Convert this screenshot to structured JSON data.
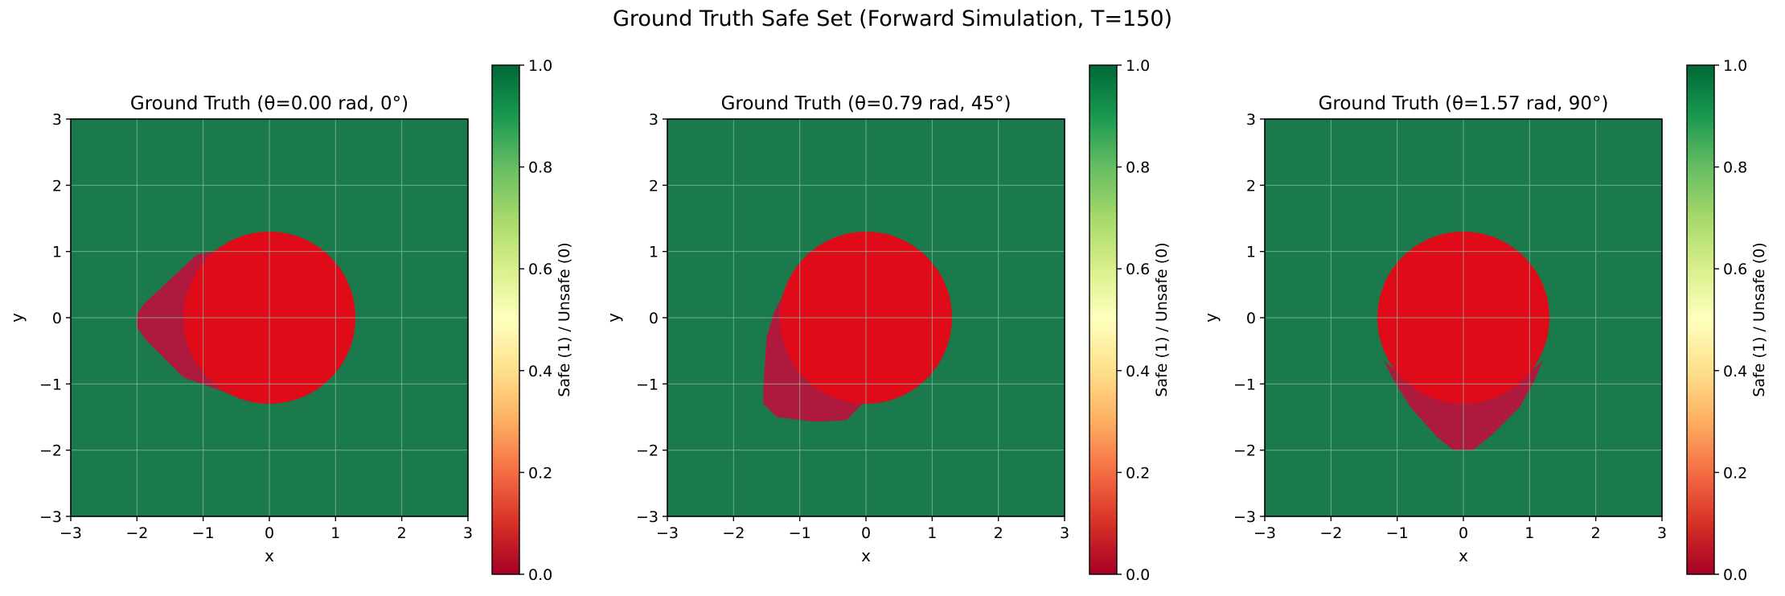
{
  "figure": {
    "suptitle": "Ground Truth Safe Set (Forward Simulation, T=150)"
  },
  "colors": {
    "safe": "#1a7a4c",
    "obstacle": "#e00b18",
    "unsafe": "#ae1a3d",
    "colormap": "RdYlGn",
    "colormap_stops": [
      "#a50026",
      "#d73027",
      "#f46d43",
      "#fdae61",
      "#fee08b",
      "#ffffbf",
      "#d9ef8b",
      "#a6d96a",
      "#66bd63",
      "#1a9850",
      "#006837"
    ],
    "grid": "#8fb9a2"
  },
  "chart_data": [
    {
      "type": "heatmap",
      "title": "Ground Truth (θ=0.00 rad, 0°)",
      "xlabel": "x",
      "ylabel": "y",
      "xlim": [
        -3,
        3
      ],
      "ylim": [
        -3,
        3
      ],
      "xticks": [
        "−3",
        "−2",
        "−1",
        "0",
        "1",
        "2",
        "3"
      ],
      "yticks": [
        "−3",
        "−2",
        "−1",
        "0",
        "1",
        "2",
        "3"
      ],
      "grid": true,
      "values_description_free": true,
      "obstacle": {
        "cx": 0,
        "cy": 0,
        "r": 1.3
      },
      "unsafe_region": [
        [
          -0.2,
          1.25
        ],
        [
          -0.45,
          1.1
        ],
        [
          -1.1,
          0.95
        ],
        [
          -1.9,
          0.2
        ],
        [
          -2.0,
          0.05
        ],
        [
          -2.0,
          -0.15
        ],
        [
          -1.85,
          -0.35
        ],
        [
          -1.3,
          -0.9
        ],
        [
          -0.6,
          -1.15
        ],
        [
          -0.1,
          -1.28
        ]
      ],
      "colorbar": {
        "label": "Safe (1) / Unsafe (0)",
        "range": [
          0,
          1
        ],
        "ticks": [
          "0.0",
          "0.2",
          "0.4",
          "0.6",
          "0.8",
          "1.0"
        ]
      }
    },
    {
      "type": "heatmap",
      "title": "Ground Truth (θ=0.79 rad, 45°)",
      "xlabel": "x",
      "ylabel": "y",
      "xlim": [
        -3,
        3
      ],
      "ylim": [
        -3,
        3
      ],
      "xticks": [
        "−3",
        "−2",
        "−1",
        "0",
        "1",
        "2",
        "3"
      ],
      "yticks": [
        "−3",
        "−2",
        "−1",
        "0",
        "1",
        "2",
        "3"
      ],
      "grid": true,
      "obstacle": {
        "cx": 0,
        "cy": 0,
        "r": 1.3
      },
      "unsafe_region": [
        [
          -1.2,
          0.45
        ],
        [
          -1.4,
          0.05
        ],
        [
          -1.5,
          -0.3
        ],
        [
          -1.55,
          -1.0
        ],
        [
          -1.55,
          -1.3
        ],
        [
          -1.35,
          -1.5
        ],
        [
          -0.8,
          -1.57
        ],
        [
          -0.3,
          -1.55
        ],
        [
          -0.05,
          -1.3
        ],
        [
          -0.9,
          -0.95
        ]
      ],
      "colorbar": {
        "label": "Safe (1) / Unsafe (0)",
        "range": [
          0,
          1
        ],
        "ticks": [
          "0.0",
          "0.2",
          "0.4",
          "0.6",
          "0.8",
          "1.0"
        ]
      }
    },
    {
      "type": "heatmap",
      "title": "Ground Truth (θ=1.57 rad, 90°)",
      "xlabel": "x",
      "ylabel": "y",
      "xlim": [
        -3,
        3
      ],
      "ylim": [
        -3,
        3
      ],
      "xticks": [
        "−3",
        "−2",
        "−1",
        "0",
        "1",
        "2",
        "3"
      ],
      "yticks": [
        "−3",
        "−2",
        "−1",
        "0",
        "1",
        "2",
        "3"
      ],
      "grid": true,
      "obstacle": {
        "cx": 0,
        "cy": 0,
        "r": 1.3
      },
      "unsafe_region": [
        [
          -1.2,
          -0.65
        ],
        [
          -1.05,
          -0.95
        ],
        [
          -0.8,
          -1.35
        ],
        [
          -0.4,
          -1.8
        ],
        [
          -0.15,
          -2.0
        ],
        [
          0.15,
          -2.0
        ],
        [
          0.45,
          -1.75
        ],
        [
          0.85,
          -1.35
        ],
        [
          1.05,
          -1.0
        ],
        [
          1.2,
          -0.65
        ],
        [
          0.6,
          -1.15
        ],
        [
          -0.6,
          -1.15
        ]
      ],
      "colorbar": {
        "label": "Safe (1) / Unsafe (0)",
        "range": [
          0,
          1
        ],
        "ticks": [
          "0.0",
          "0.2",
          "0.4",
          "0.6",
          "0.8",
          "1.0"
        ]
      }
    }
  ]
}
